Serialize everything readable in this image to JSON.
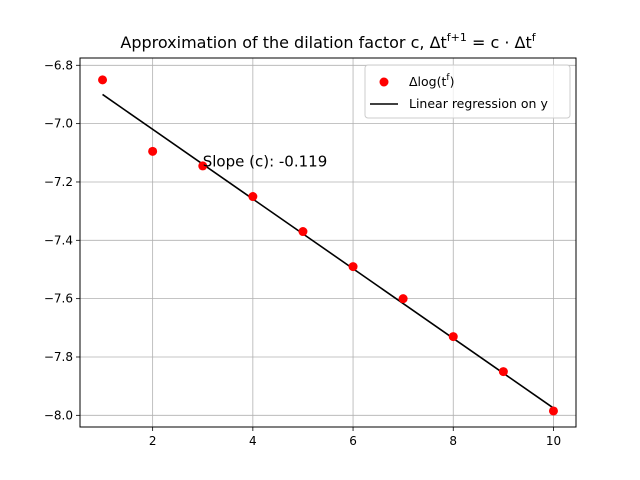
{
  "chart_data": {
    "type": "scatter",
    "title": "Approximation of the dilation factor c, Δt^(f+1) = c · Δt^f",
    "title_parts": {
      "prefix": "Approximation of the dilation factor c, Δt",
      "sup1": "f+1",
      "mid": " = c · Δt",
      "sup2": "f"
    },
    "xlim": [
      0.55,
      10.45
    ],
    "ylim": [
      -8.04,
      -6.775
    ],
    "xticks": [
      2,
      4,
      6,
      8,
      10
    ],
    "xtick_labels": [
      "2",
      "4",
      "6",
      "8",
      "10"
    ],
    "yticks": [
      -6.8,
      -7.0,
      -7.2,
      -7.4,
      -7.6,
      -7.8,
      -8.0
    ],
    "ytick_labels": [
      "−6.8",
      "−7.0",
      "−7.2",
      "−7.4",
      "−7.6",
      "−7.8",
      "−8.0"
    ],
    "grid": true,
    "legend_position": "top-right",
    "series": [
      {
        "name": "Δlog(t^f)",
        "name_parts": {
          "prefix": "Δlog(t",
          "sup": "f",
          "suffix": ")"
        },
        "kind": "scatter",
        "color": "#ff0000",
        "x": [
          1,
          2,
          3,
          4,
          5,
          6,
          7,
          8,
          9,
          10
        ],
        "y": [
          -6.85,
          -7.095,
          -7.145,
          -7.25,
          -7.37,
          -7.49,
          -7.6,
          -7.73,
          -7.85,
          -7.985
        ]
      },
      {
        "name": "Linear regression on y",
        "kind": "line",
        "color": "#000000",
        "x": [
          1,
          10
        ],
        "y": [
          -6.9,
          -7.975
        ]
      }
    ],
    "annotation": {
      "text": "Slope (c): -0.119",
      "x": 3,
      "y": -7.14
    }
  }
}
